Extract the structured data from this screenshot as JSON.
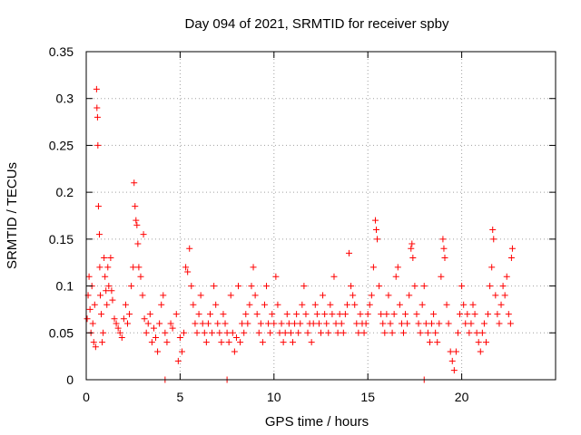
{
  "chart_data": {
    "type": "scatter",
    "title": "Day 094 of 2021, SRMTID for receiver spby",
    "xlabel": "GPS time / hours",
    "ylabel": "SRMTID / TECUs",
    "xlim": [
      0,
      25
    ],
    "ylim": [
      0,
      0.35
    ],
    "grid": true,
    "marker": "+",
    "color": "#ff0000",
    "x_ticks": [
      0,
      5,
      10,
      15,
      20
    ],
    "x_tick_labels": [
      "0",
      "5",
      "10",
      "15",
      "20"
    ],
    "y_ticks": [
      0,
      0.05,
      0.1,
      0.15,
      0.2,
      0.25,
      0.3,
      0.35
    ],
    "y_tick_labels": [
      "0",
      "0.05",
      "0.1",
      "0.15",
      "0.2",
      "0.25",
      "0.3",
      "0.35"
    ],
    "series": [
      {
        "name": "SRMTID",
        "points": [
          [
            0.05,
            0.065
          ],
          [
            0.1,
            0.09
          ],
          [
            0.15,
            0.11
          ],
          [
            0.2,
            0.075
          ],
          [
            0.25,
            0.05
          ],
          [
            0.3,
            0.1
          ],
          [
            0.35,
            0.06
          ],
          [
            0.4,
            0.04
          ],
          [
            0.45,
            0.08
          ],
          [
            0.5,
            0.035
          ],
          [
            0.55,
            0.31
          ],
          [
            0.57,
            0.29
          ],
          [
            0.6,
            0.28
          ],
          [
            0.62,
            0.25
          ],
          [
            0.65,
            0.185
          ],
          [
            0.7,
            0.155
          ],
          [
            0.72,
            0.12
          ],
          [
            0.75,
            0.09
          ],
          [
            0.8,
            0.07
          ],
          [
            0.85,
            0.04
          ],
          [
            0.9,
            0.05
          ],
          [
            0.95,
            0.13
          ],
          [
            1.0,
            0.11
          ],
          [
            1.05,
            0.095
          ],
          [
            1.1,
            0.08
          ],
          [
            1.15,
            0.12
          ],
          [
            1.2,
            0.1
          ],
          [
            1.3,
            0.13
          ],
          [
            1.35,
            0.095
          ],
          [
            1.4,
            0.085
          ],
          [
            1.5,
            0.065
          ],
          [
            1.6,
            0.06
          ],
          [
            1.7,
            0.055
          ],
          [
            1.8,
            0.05
          ],
          [
            1.9,
            0.045
          ],
          [
            2.0,
            0.065
          ],
          [
            2.1,
            0.08
          ],
          [
            2.2,
            0.06
          ],
          [
            2.3,
            0.07
          ],
          [
            2.4,
            0.1
          ],
          [
            2.5,
            0.12
          ],
          [
            2.55,
            0.21
          ],
          [
            2.6,
            0.185
          ],
          [
            2.65,
            0.17
          ],
          [
            2.7,
            0.165
          ],
          [
            2.75,
            0.145
          ],
          [
            2.8,
            0.12
          ],
          [
            2.9,
            0.11
          ],
          [
            3.0,
            0.09
          ],
          [
            3.05,
            0.155
          ],
          [
            3.1,
            0.065
          ],
          [
            3.2,
            0.05
          ],
          [
            3.3,
            0.06
          ],
          [
            3.4,
            0.07
          ],
          [
            3.5,
            0.04
          ],
          [
            3.6,
            0.055
          ],
          [
            3.7,
            0.045
          ],
          [
            3.8,
            0.03
          ],
          [
            3.9,
            0.06
          ],
          [
            4.0,
            0.08
          ],
          [
            4.1,
            0.09
          ],
          [
            4.2,
            0.05
          ],
          [
            4.3,
            0.04
          ],
          [
            4.5,
            0.06
          ],
          [
            4.6,
            0.055
          ],
          [
            4.8,
            0.07
          ],
          [
            4.9,
            0.02
          ],
          [
            5.0,
            0.045
          ],
          [
            5.1,
            0.03
          ],
          [
            5.2,
            0.05
          ],
          [
            5.3,
            0.12
          ],
          [
            5.4,
            0.115
          ],
          [
            5.5,
            0.14
          ],
          [
            5.6,
            0.1
          ],
          [
            5.7,
            0.08
          ],
          [
            5.8,
            0.06
          ],
          [
            5.9,
            0.05
          ],
          [
            6.0,
            0.07
          ],
          [
            6.1,
            0.09
          ],
          [
            6.2,
            0.06
          ],
          [
            6.3,
            0.05
          ],
          [
            6.4,
            0.04
          ],
          [
            6.5,
            0.06
          ],
          [
            6.6,
            0.07
          ],
          [
            6.7,
            0.05
          ],
          [
            6.8,
            0.1
          ],
          [
            6.9,
            0.08
          ],
          [
            7.0,
            0.06
          ],
          [
            7.1,
            0.05
          ],
          [
            7.2,
            0.04
          ],
          [
            7.3,
            0.07
          ],
          [
            7.4,
            0.06
          ],
          [
            7.5,
            0.05
          ],
          [
            7.6,
            0.04
          ],
          [
            7.7,
            0.09
          ],
          [
            7.8,
            0.05
          ],
          [
            7.9,
            0.03
          ],
          [
            8.0,
            0.045
          ],
          [
            8.1,
            0.1
          ],
          [
            8.2,
            0.04
          ],
          [
            8.3,
            0.06
          ],
          [
            8.4,
            0.05
          ],
          [
            8.5,
            0.07
          ],
          [
            8.6,
            0.06
          ],
          [
            8.7,
            0.08
          ],
          [
            8.8,
            0.1
          ],
          [
            8.9,
            0.12
          ],
          [
            9.0,
            0.09
          ],
          [
            9.1,
            0.07
          ],
          [
            9.2,
            0.05
          ],
          [
            9.3,
            0.06
          ],
          [
            9.4,
            0.04
          ],
          [
            9.5,
            0.08
          ],
          [
            9.6,
            0.1
          ],
          [
            9.7,
            0.06
          ],
          [
            9.8,
            0.05
          ],
          [
            9.9,
            0.07
          ],
          [
            10.0,
            0.06
          ],
          [
            10.1,
            0.11
          ],
          [
            10.2,
            0.08
          ],
          [
            10.3,
            0.05
          ],
          [
            10.4,
            0.06
          ],
          [
            10.5,
            0.04
          ],
          [
            10.6,
            0.05
          ],
          [
            10.7,
            0.07
          ],
          [
            10.8,
            0.06
          ],
          [
            10.9,
            0.05
          ],
          [
            11.0,
            0.04
          ],
          [
            11.1,
            0.06
          ],
          [
            11.2,
            0.07
          ],
          [
            11.3,
            0.05
          ],
          [
            11.4,
            0.06
          ],
          [
            11.5,
            0.08
          ],
          [
            11.6,
            0.1
          ],
          [
            11.7,
            0.07
          ],
          [
            11.8,
            0.05
          ],
          [
            11.9,
            0.06
          ],
          [
            12.0,
            0.04
          ],
          [
            12.1,
            0.06
          ],
          [
            12.2,
            0.08
          ],
          [
            12.3,
            0.07
          ],
          [
            12.4,
            0.06
          ],
          [
            12.5,
            0.05
          ],
          [
            12.6,
            0.09
          ],
          [
            12.7,
            0.07
          ],
          [
            12.8,
            0.06
          ],
          [
            12.9,
            0.05
          ],
          [
            13.0,
            0.08
          ],
          [
            13.1,
            0.07
          ],
          [
            13.2,
            0.11
          ],
          [
            13.3,
            0.06
          ],
          [
            13.4,
            0.05
          ],
          [
            13.5,
            0.07
          ],
          [
            13.6,
            0.06
          ],
          [
            13.7,
            0.05
          ],
          [
            13.8,
            0.07
          ],
          [
            13.9,
            0.08
          ],
          [
            14.0,
            0.135
          ],
          [
            14.1,
            0.1
          ],
          [
            14.2,
            0.09
          ],
          [
            14.3,
            0.08
          ],
          [
            14.4,
            0.06
          ],
          [
            14.5,
            0.05
          ],
          [
            14.6,
            0.07
          ],
          [
            14.7,
            0.06
          ],
          [
            14.8,
            0.05
          ],
          [
            14.9,
            0.06
          ],
          [
            15.0,
            0.07
          ],
          [
            15.1,
            0.08
          ],
          [
            15.2,
            0.09
          ],
          [
            15.3,
            0.12
          ],
          [
            15.4,
            0.17
          ],
          [
            15.45,
            0.16
          ],
          [
            15.5,
            0.15
          ],
          [
            15.6,
            0.1
          ],
          [
            15.7,
            0.07
          ],
          [
            15.8,
            0.06
          ],
          [
            15.9,
            0.05
          ],
          [
            16.0,
            0.07
          ],
          [
            16.1,
            0.09
          ],
          [
            16.2,
            0.06
          ],
          [
            16.3,
            0.05
          ],
          [
            16.4,
            0.07
          ],
          [
            16.5,
            0.11
          ],
          [
            16.6,
            0.12
          ],
          [
            16.7,
            0.08
          ],
          [
            16.8,
            0.06
          ],
          [
            16.9,
            0.05
          ],
          [
            17.0,
            0.07
          ],
          [
            17.1,
            0.06
          ],
          [
            17.2,
            0.09
          ],
          [
            17.3,
            0.14
          ],
          [
            17.35,
            0.145
          ],
          [
            17.4,
            0.13
          ],
          [
            17.5,
            0.1
          ],
          [
            17.6,
            0.07
          ],
          [
            17.7,
            0.06
          ],
          [
            17.8,
            0.05
          ],
          [
            17.9,
            0.08
          ],
          [
            18.0,
            0.1
          ],
          [
            18.1,
            0.06
          ],
          [
            18.2,
            0.05
          ],
          [
            18.3,
            0.04
          ],
          [
            18.4,
            0.06
          ],
          [
            18.5,
            0.07
          ],
          [
            18.6,
            0.05
          ],
          [
            18.7,
            0.04
          ],
          [
            18.8,
            0.06
          ],
          [
            18.9,
            0.11
          ],
          [
            19.0,
            0.15
          ],
          [
            19.05,
            0.14
          ],
          [
            19.1,
            0.13
          ],
          [
            19.2,
            0.08
          ],
          [
            19.3,
            0.06
          ],
          [
            19.4,
            0.03
          ],
          [
            19.5,
            0.02
          ],
          [
            19.6,
            0.01
          ],
          [
            19.7,
            0.03
          ],
          [
            19.8,
            0.05
          ],
          [
            19.9,
            0.07
          ],
          [
            20.0,
            0.1
          ],
          [
            20.1,
            0.08
          ],
          [
            20.2,
            0.06
          ],
          [
            20.3,
            0.07
          ],
          [
            20.4,
            0.05
          ],
          [
            20.5,
            0.06
          ],
          [
            20.6,
            0.08
          ],
          [
            20.7,
            0.07
          ],
          [
            20.8,
            0.05
          ],
          [
            20.9,
            0.04
          ],
          [
            21.0,
            0.03
          ],
          [
            21.1,
            0.05
          ],
          [
            21.2,
            0.06
          ],
          [
            21.3,
            0.04
          ],
          [
            21.4,
            0.07
          ],
          [
            21.5,
            0.1
          ],
          [
            21.6,
            0.12
          ],
          [
            21.65,
            0.16
          ],
          [
            21.7,
            0.15
          ],
          [
            21.8,
            0.09
          ],
          [
            21.9,
            0.07
          ],
          [
            22.0,
            0.06
          ],
          [
            22.1,
            0.08
          ],
          [
            22.2,
            0.1
          ],
          [
            22.3,
            0.09
          ],
          [
            22.4,
            0.11
          ],
          [
            22.5,
            0.07
          ],
          [
            22.6,
            0.06
          ],
          [
            22.65,
            0.13
          ],
          [
            22.7,
            0.14
          ],
          [
            4.2,
            0.0
          ],
          [
            7.5,
            0.0
          ],
          [
            18.0,
            0.0
          ]
        ]
      }
    ]
  }
}
